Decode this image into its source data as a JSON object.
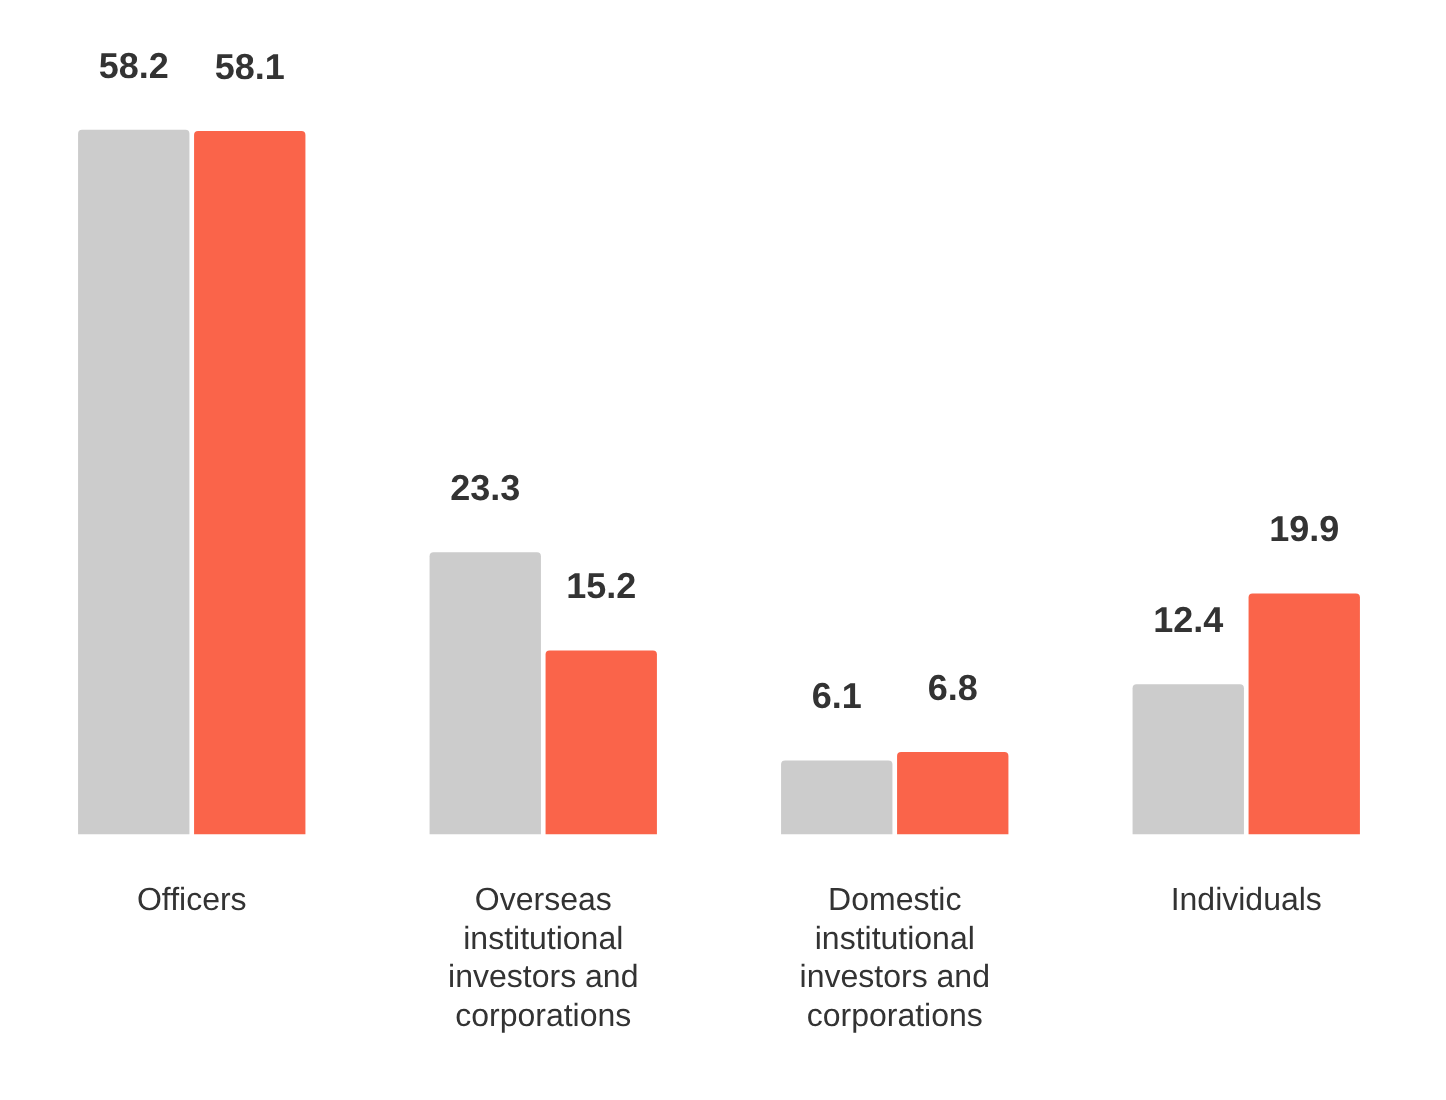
{
  "chart_data": {
    "type": "bar",
    "categories": [
      "Officers",
      "Overseas institutional investors and corporations",
      "Domestic institutional investors and corporations",
      "Individuals"
    ],
    "series": [
      {
        "color": "#cccccc",
        "values": [
          58.2,
          23.3,
          6.1,
          12.4
        ]
      },
      {
        "color": "#fa644a",
        "values": [
          58.1,
          15.2,
          6.8,
          19.9
        ]
      }
    ],
    "data_labels": true,
    "grid": false,
    "legend": false
  }
}
